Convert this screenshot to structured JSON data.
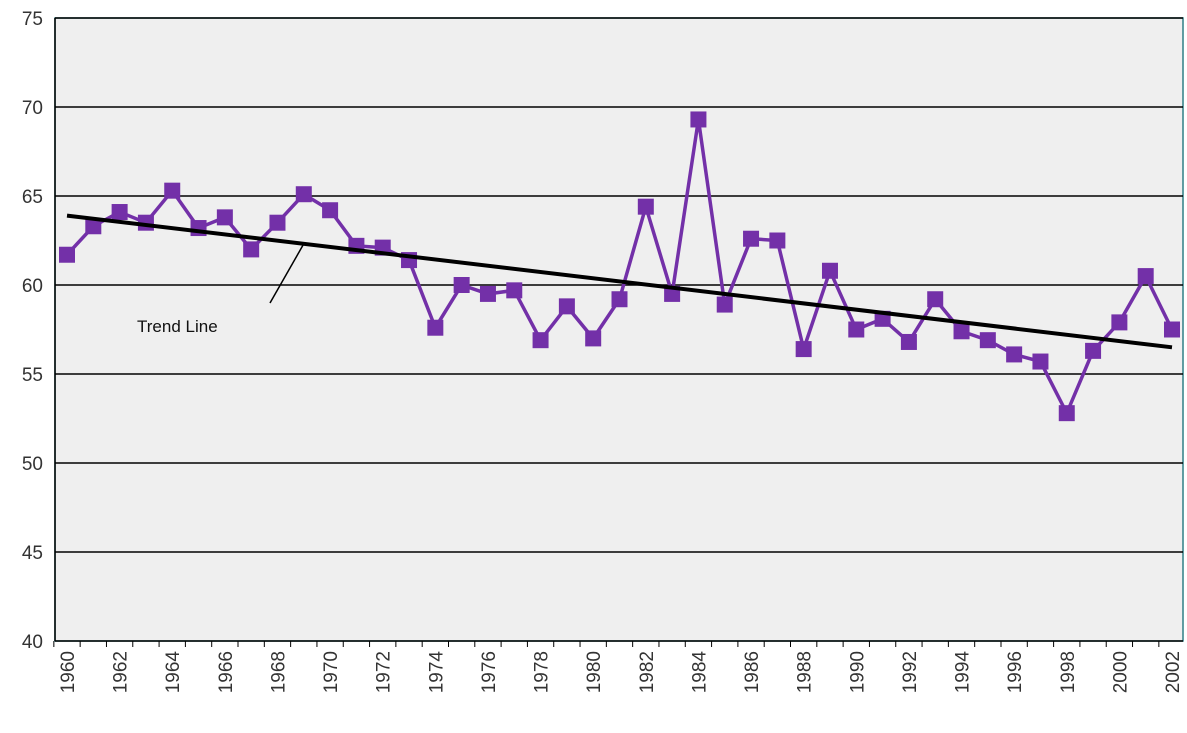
{
  "chart_data": {
    "type": "line",
    "categories": [
      "1960",
      null,
      "1962",
      null,
      "1964",
      null,
      "1966",
      null,
      "1968",
      null,
      "1970",
      null,
      "1972",
      null,
      "1974",
      null,
      "1976",
      null,
      "1978",
      null,
      "1980",
      null,
      "1982",
      null,
      "1984",
      null,
      "1986",
      null,
      "1988",
      null,
      "1990",
      null,
      "1992",
      null,
      "1994",
      null,
      "1996",
      null,
      "1998",
      null,
      "2000",
      null,
      "2002"
    ],
    "series": [
      {
        "color": "#7330a8",
        "values": [
          61.7,
          63.3,
          64.1,
          63.5,
          65.3,
          63.2,
          63.8,
          62.0,
          63.5,
          65.1,
          64.2,
          62.2,
          62.1,
          61.4,
          57.6,
          60.0,
          59.5,
          59.7,
          56.9,
          58.8,
          57.0,
          59.2,
          64.4,
          59.5,
          69.3,
          58.9,
          62.6,
          62.5,
          56.4,
          60.8,
          57.5,
          58.1,
          56.8,
          59.2,
          57.4,
          56.9,
          56.1,
          55.7,
          52.8,
          56.3,
          57.9,
          60.5,
          57.5
        ]
      }
    ],
    "trend_line": {
      "label": "Trend Line",
      "color": "#000000",
      "start": 63.9,
      "end": 56.5
    },
    "ylim": [
      40,
      75
    ],
    "yticks": [
      40,
      45,
      50,
      55,
      60,
      65,
      70,
      75
    ],
    "grid": true
  }
}
